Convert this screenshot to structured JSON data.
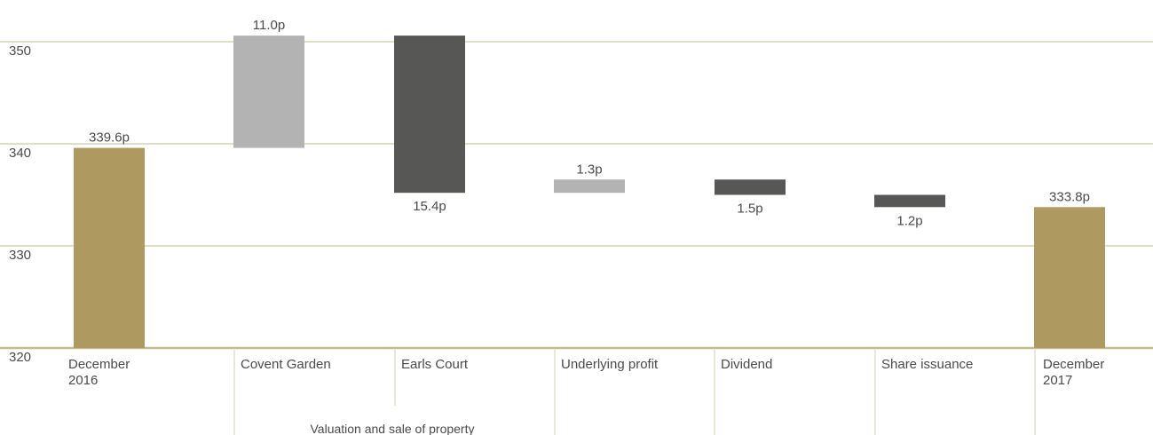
{
  "chart_data": {
    "type": "bar",
    "subtype": "waterfall",
    "ylim": [
      320,
      350
    ],
    "yticks": [
      320,
      330,
      340,
      350
    ],
    "grid": true,
    "categories": [
      {
        "label": [
          "December",
          "2016"
        ],
        "value_label": "339.6p",
        "base": 320,
        "top": 339.6,
        "color": "#ae9961",
        "label_pos": "above"
      },
      {
        "label": [
          "Covent Garden"
        ],
        "value_label": "11.0p",
        "base": 339.6,
        "top": 350.6,
        "color": "#b3b3b3",
        "label_pos": "above"
      },
      {
        "label": [
          "Earls Court"
        ],
        "value_label": "15.4p",
        "base": 335.2,
        "top": 350.6,
        "color": "#575755",
        "label_pos": "below"
      },
      {
        "label": [
          "Underlying profit"
        ],
        "value_label": "1.3p",
        "base": 335.2,
        "top": 336.5,
        "color": "#b3b3b3",
        "label_pos": "above"
      },
      {
        "label": [
          "Dividend"
        ],
        "value_label": "1.5p",
        "base": 335.0,
        "top": 336.5,
        "color": "#575755",
        "label_pos": "below"
      },
      {
        "label": [
          "Share issuance"
        ],
        "value_label": "1.2p",
        "base": 333.8,
        "top": 335.0,
        "color": "#575755",
        "label_pos": "below"
      },
      {
        "label": [
          "December",
          "2017"
        ],
        "value_label": "333.8p",
        "base": 320,
        "top": 333.8,
        "color": "#ae9961",
        "label_pos": "above"
      }
    ],
    "group_label": "Valuation and sale of property",
    "colors": {
      "increase": "#b3b3b3",
      "decrease": "#575755",
      "total": "#ae9961",
      "gridline": "#c2bd8a",
      "separator": "#d9ceb0",
      "text": "#4a4a4a"
    }
  }
}
